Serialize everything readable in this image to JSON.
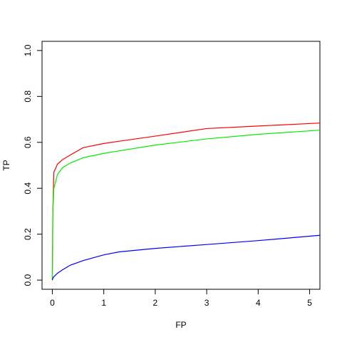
{
  "chart_data": {
    "type": "line",
    "x_label": "FP",
    "y_label": "TP",
    "x": [
      0,
      0.01,
      0.03,
      0.1,
      0.2,
      0.35,
      0.6,
      1,
      1.3,
      2,
      3,
      4,
      5.2
    ],
    "series": [
      {
        "color": "#ff0000",
        "values": [
          0,
          0.3,
          0.47,
          0.505,
          0.525,
          0.545,
          0.577,
          0.595,
          0.605,
          0.627,
          0.66,
          0.671,
          0.684
        ]
      },
      {
        "color": "#00ee00",
        "values": [
          0,
          0.3,
          0.4,
          0.46,
          0.49,
          0.51,
          0.533,
          0.552,
          0.563,
          0.588,
          0.615,
          0.635,
          0.653
        ]
      },
      {
        "color": "#0000ff",
        "values": [
          0,
          0.008,
          0.015,
          0.03,
          0.045,
          0.065,
          0.085,
          0.11,
          0.123,
          0.138,
          0.155,
          0.172,
          0.195
        ]
      }
    ],
    "xlim": [
      -0.2,
      5.2
    ],
    "ylim": [
      -0.04,
      1.04
    ],
    "xticks": [
      0,
      1,
      2,
      3,
      4,
      5
    ],
    "yticks": [
      {
        "value": 0,
        "label": "0.0"
      },
      0.2,
      0.4,
      0.6,
      0.8,
      {
        "value": 1,
        "label": "1.0"
      }
    ]
  }
}
